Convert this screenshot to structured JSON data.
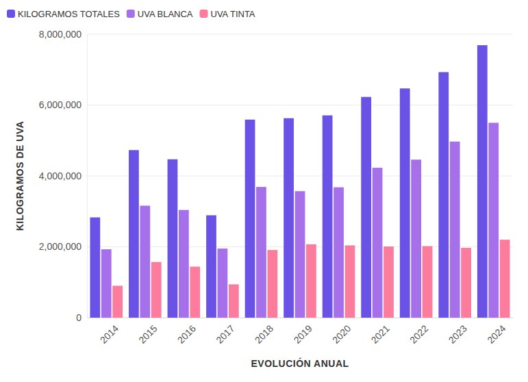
{
  "chart_data": {
    "type": "bar",
    "x_label": "EVOLUCIÓN ANUAL",
    "y_label": "KILOGRAMOS DE UVA",
    "categories": [
      "2014",
      "2015",
      "2016",
      "2017",
      "2018",
      "2019",
      "2020",
      "2021",
      "2022",
      "2023",
      "2024"
    ],
    "series": [
      {
        "name": "KILOGRAMOS TOTALES",
        "color": "#6b52e6",
        "values": [
          2830000,
          4730000,
          4470000,
          2890000,
          5590000,
          5630000,
          5710000,
          6230000,
          6470000,
          6930000,
          7690000
        ]
      },
      {
        "name": "UVA BLANCA",
        "color": "#a670ea",
        "values": [
          1930000,
          3160000,
          3040000,
          1950000,
          3690000,
          3570000,
          3680000,
          4230000,
          4460000,
          4970000,
          5500000
        ]
      },
      {
        "name": "UVA TINTA",
        "color": "#fb7c9d",
        "values": [
          900000,
          1570000,
          1440000,
          940000,
          1910000,
          2070000,
          2040000,
          2010000,
          2020000,
          1970000,
          2200000
        ]
      }
    ],
    "ylim": [
      0,
      8000000
    ],
    "yticks": [
      0,
      {
        "value": 2000000,
        "label": "2,000,000"
      },
      {
        "value": 4000000,
        "label": "4,000,000"
      },
      {
        "value": 6000000,
        "label": "6,000,000"
      },
      {
        "value": 8000000,
        "label": "8,000,000"
      }
    ],
    "grid": true,
    "legend": "top-left"
  }
}
